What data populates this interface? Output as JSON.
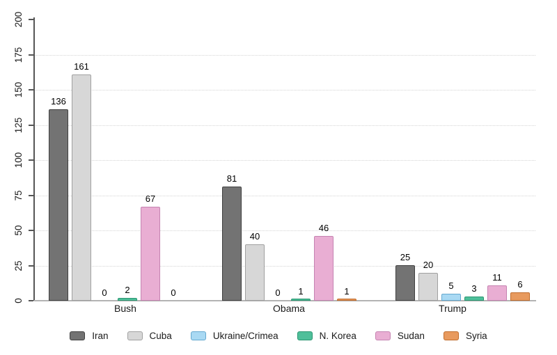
{
  "chart_data": {
    "type": "bar",
    "title": "",
    "xlabel": "",
    "ylabel": "",
    "categories": [
      "Bush",
      "Obama",
      "Trump"
    ],
    "series": [
      {
        "name": "Iran",
        "color": "#737373",
        "border_color": "#3f3f3f",
        "values": [
          136,
          81,
          25
        ]
      },
      {
        "name": "Cuba",
        "color": "#d7d7d7",
        "border_color": "#a0a0a0",
        "values": [
          161,
          40,
          20
        ]
      },
      {
        "name": "Ukraine/Crimea",
        "color": "#a9d9f3",
        "border_color": "#64a8cf",
        "values": [
          0,
          0,
          5
        ]
      },
      {
        "name": "N. Korea",
        "color": "#4fbf9a",
        "border_color": "#2a9671",
        "values": [
          2,
          1,
          3
        ]
      },
      {
        "name": "Sudan",
        "color": "#e9aed3",
        "border_color": "#c583b1",
        "values": [
          67,
          46,
          11
        ]
      },
      {
        "name": "Syria",
        "color": "#e89a5e",
        "border_color": "#c06c2c",
        "values": [
          0,
          1,
          6
        ]
      }
    ],
    "ylim": [
      0,
      200
    ],
    "yticks": [
      0,
      25,
      50,
      75,
      100,
      125,
      150,
      175,
      200
    ],
    "gridlines": [
      25,
      50,
      75,
      100,
      125,
      150,
      175
    ],
    "grid_style": "dotted",
    "legend_position": "bottom",
    "value_labels_shown": true,
    "axis_colors": {
      "axis_line": "#555555",
      "baseline": "#b3b3b3",
      "grid": "#d4d4d4",
      "text": "#1a1a1a"
    }
  }
}
